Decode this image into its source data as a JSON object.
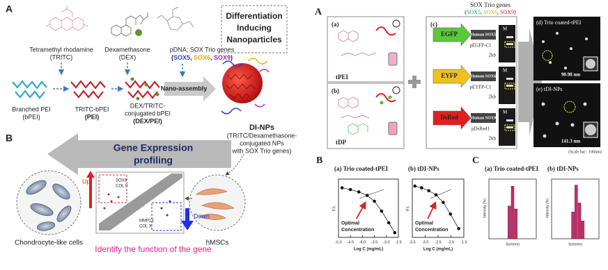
{
  "left": {
    "panel_a": {
      "label": "A",
      "tritc": [
        "Tetramethyl rhodamine",
        "(TRITC)"
      ],
      "dex": [
        "Dexamethasone",
        "(DEX)"
      ],
      "pdna": "pDNA; SOX Trio genes",
      "sox_parts": [
        "(",
        "SOX5",
        ", ",
        "SOX6",
        ", ",
        "SOX9",
        ")"
      ],
      "title": [
        "Differentiation",
        "Inducing",
        "Nanoparticles"
      ],
      "bpei": [
        "Branched PEI",
        "(bPEI)"
      ],
      "tritc_bpei": [
        "TRITC-bPEI",
        "(PEI)"
      ],
      "dex_bpei": [
        "DEX/TRITC-",
        "conjugated bPEI",
        "(DEX/PEI)"
      ],
      "assembly": "Nano-assembly",
      "dinps": "DI-NPs",
      "dinps_desc": [
        "(TRITC/Dexamethasone-",
        "conjugated NPs",
        "with SOX Trio genes)"
      ]
    },
    "panel_b": {
      "label": "B",
      "arrow": [
        "Gene Expression",
        "profiling"
      ],
      "up": "Up",
      "down": "Down",
      "up_genes": [
        "SOX9",
        "COL II"
      ],
      "down_genes": [
        "MMP13",
        "COL X"
      ],
      "chondrocyte": "Chondrocyte-like cells",
      "hmsc": "hMSCs",
      "footer": "Identify the function of the gene"
    }
  },
  "right": {
    "panel_a": {
      "label": "A",
      "a": {
        "label": "(a)",
        "name": "tPEI"
      },
      "b": {
        "label": "(b)",
        "name": "tDP"
      },
      "c": {
        "label": "(c)",
        "title": "SOX Trio genes",
        "sox_parts": [
          "(",
          "SOX5",
          ", ",
          "SOX6",
          ", ",
          "SOX9",
          ")"
        ],
        "constructs": [
          {
            "tag": "EGFP",
            "gene": "Human SOX5",
            "vector": "pEGFP-C1",
            "marker": "M",
            "size": "2kb"
          },
          {
            "tag": "EYFP",
            "gene": "Human SOX6",
            "vector": "pEYFP-C1",
            "marker": "M",
            "size": "2kb"
          },
          {
            "tag": "DsRed",
            "gene": "Human SOX9",
            "vector": "pDsRed1",
            "marker": "M",
            "size": "2kb"
          }
        ]
      },
      "d": {
        "label": "(d) Trio coated-tPEI",
        "size": "90.98 nm"
      },
      "e": {
        "label": "(e) tDI-NPs",
        "size": "141.3 nm"
      },
      "scale": "(Scale bar : 100nm)"
    },
    "panel_b": {
      "label": "B",
      "charts": [
        {
          "title": "(a) Trio coated-tPEI",
          "y_label": "F.I.",
          "x_label": "Log C (mg/mL)",
          "annotation": [
            "Optimal",
            "Concentration"
          ],
          "xticks": [
            "-5.0",
            "-4.5",
            "-4.0",
            "-3.5",
            "-3.0",
            "-2.5"
          ]
        },
        {
          "title": "(b) tDI-NPs",
          "y_label": "F.I.",
          "x_label": "Log C (mg/mL)",
          "annotation": [
            "Optimal",
            "Concentration"
          ],
          "xticks": [
            "-3.5",
            "-3.0",
            "-2.5",
            "-2.0",
            "-1.5"
          ]
        }
      ]
    },
    "panel_c": {
      "label": "C",
      "charts": [
        {
          "title": "(a) Trio coated-tPEI",
          "y_label": "Intensity (%)",
          "x_label": "Size(nm)"
        },
        {
          "title": "(b) tDI-NPs",
          "y_label": "Intensity (%)",
          "x_label": "Size(nm)"
        }
      ]
    }
  }
}
